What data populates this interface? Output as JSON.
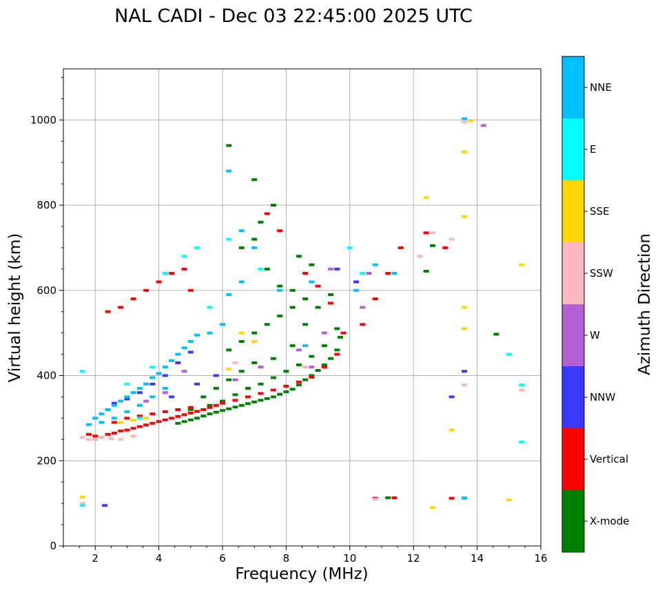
{
  "chart_data": {
    "type": "scatter",
    "title": "NAL CADI - Dec 03 22:45:00 2025 UTC",
    "xlabel": "Frequency (MHz)",
    "ylabel": "Virtual height (km)",
    "xlim": [
      1,
      16
    ],
    "ylim": [
      0,
      1120
    ],
    "xticks": [
      2,
      4,
      6,
      8,
      10,
      12,
      14,
      16
    ],
    "yticks": [
      0,
      200,
      400,
      600,
      800,
      1000
    ],
    "grid": true,
    "colorbar": {
      "label": "Azimuth Direction",
      "placement": "right",
      "categories": [
        {
          "name": "X-mode",
          "color": "#008000"
        },
        {
          "name": "Vertical",
          "color": "#ff0000"
        },
        {
          "name": "NNW",
          "color": "#3a3aff"
        },
        {
          "name": "W",
          "color": "#b55fd6"
        },
        {
          "name": "SSW",
          "color": "#ffb6c1"
        },
        {
          "name": "SSE",
          "color": "#ffd700"
        },
        {
          "name": "E",
          "color": "#00ffff"
        },
        {
          "name": "NNE",
          "color": "#00bfff"
        }
      ]
    },
    "series": [
      {
        "name": "X-mode",
        "color": "#008000",
        "points": [
          [
            4.6,
            288
          ],
          [
            4.8,
            292
          ],
          [
            5.0,
            296
          ],
          [
            5.2,
            300
          ],
          [
            5.4,
            305
          ],
          [
            5.6,
            310
          ],
          [
            5.8,
            314
          ],
          [
            6.0,
            318
          ],
          [
            6.2,
            322
          ],
          [
            6.4,
            326
          ],
          [
            6.6,
            330
          ],
          [
            6.8,
            334
          ],
          [
            7.0,
            338
          ],
          [
            7.2,
            342
          ],
          [
            7.4,
            346
          ],
          [
            7.6,
            350
          ],
          [
            7.8,
            356
          ],
          [
            8.0,
            362
          ],
          [
            8.2,
            368
          ],
          [
            8.4,
            378
          ],
          [
            8.6,
            390
          ],
          [
            8.8,
            400
          ],
          [
            9.0,
            412
          ],
          [
            9.2,
            425
          ],
          [
            9.4,
            440
          ],
          [
            9.6,
            460
          ],
          [
            9.7,
            490
          ],
          [
            5.6,
            330
          ],
          [
            6.0,
            340
          ],
          [
            6.4,
            355
          ],
          [
            6.8,
            370
          ],
          [
            7.2,
            380
          ],
          [
            7.6,
            395
          ],
          [
            8.0,
            410
          ],
          [
            8.4,
            425
          ],
          [
            8.8,
            445
          ],
          [
            9.2,
            470
          ],
          [
            9.6,
            510
          ],
          [
            6.2,
            460
          ],
          [
            6.6,
            480
          ],
          [
            7.0,
            500
          ],
          [
            7.4,
            520
          ],
          [
            7.8,
            540
          ],
          [
            8.2,
            560
          ],
          [
            8.6,
            580
          ],
          [
            9.0,
            560
          ],
          [
            9.4,
            590
          ],
          [
            6.6,
            700
          ],
          [
            7.0,
            720
          ],
          [
            7.4,
            650
          ],
          [
            7.8,
            610
          ],
          [
            8.2,
            600
          ],
          [
            8.4,
            680
          ],
          [
            8.8,
            660
          ],
          [
            7.2,
            760
          ],
          [
            7.6,
            800
          ],
          [
            7.0,
            860
          ],
          [
            6.2,
            940
          ],
          [
            8.6,
            520
          ],
          [
            8.2,
            470
          ],
          [
            7.6,
            440
          ],
          [
            7.0,
            430
          ],
          [
            6.6,
            410
          ],
          [
            6.2,
            390
          ],
          [
            5.8,
            370
          ],
          [
            5.4,
            350
          ],
          [
            5.0,
            320
          ],
          [
            14.6,
            497
          ],
          [
            12.6,
            705
          ],
          [
            12.4,
            645
          ],
          [
            11.2,
            113
          ]
        ]
      },
      {
        "name": "Vertical",
        "color": "#ff0000",
        "points": [
          [
            1.8,
            262
          ],
          [
            2.0,
            258
          ],
          [
            2.2,
            255
          ],
          [
            2.4,
            262
          ],
          [
            2.6,
            265
          ],
          [
            2.8,
            270
          ],
          [
            3.0,
            272
          ],
          [
            3.2,
            276
          ],
          [
            3.4,
            280
          ],
          [
            3.6,
            284
          ],
          [
            3.8,
            288
          ],
          [
            4.0,
            292
          ],
          [
            4.2,
            296
          ],
          [
            4.4,
            300
          ],
          [
            4.6,
            304
          ],
          [
            4.8,
            308
          ],
          [
            5.0,
            312
          ],
          [
            5.2,
            316
          ],
          [
            5.4,
            320
          ],
          [
            5.6,
            325
          ],
          [
            5.8,
            330
          ],
          [
            6.0,
            335
          ],
          [
            6.4,
            342
          ],
          [
            6.8,
            350
          ],
          [
            7.2,
            358
          ],
          [
            7.6,
            366
          ],
          [
            8.0,
            375
          ],
          [
            8.4,
            385
          ],
          [
            8.8,
            396
          ],
          [
            9.2,
            420
          ],
          [
            9.6,
            450
          ],
          [
            9.8,
            500
          ],
          [
            2.6,
            290
          ],
          [
            3.0,
            300
          ],
          [
            3.4,
            305
          ],
          [
            3.8,
            310
          ],
          [
            4.2,
            315
          ],
          [
            4.6,
            320
          ],
          [
            5.0,
            325
          ],
          [
            2.4,
            550
          ],
          [
            2.8,
            560
          ],
          [
            3.2,
            580
          ],
          [
            3.6,
            600
          ],
          [
            4.0,
            620
          ],
          [
            4.4,
            640
          ],
          [
            4.8,
            650
          ],
          [
            5.0,
            600
          ],
          [
            7.4,
            780
          ],
          [
            7.8,
            740
          ],
          [
            8.6,
            640
          ],
          [
            9.0,
            610
          ],
          [
            9.4,
            570
          ],
          [
            10.4,
            520
          ],
          [
            10.8,
            580
          ],
          [
            11.2,
            640
          ],
          [
            11.6,
            700
          ],
          [
            12.4,
            735
          ],
          [
            13.0,
            700
          ],
          [
            10.8,
            112
          ],
          [
            11.4,
            113
          ],
          [
            13.2,
            112
          ]
        ]
      },
      {
        "name": "NNW",
        "color": "#3a3aff",
        "points": [
          [
            2.6,
            335
          ],
          [
            3.0,
            345
          ],
          [
            3.4,
            360
          ],
          [
            3.8,
            380
          ],
          [
            4.2,
            400
          ],
          [
            4.6,
            430
          ],
          [
            5.0,
            455
          ],
          [
            4.4,
            350
          ],
          [
            5.2,
            380
          ],
          [
            5.8,
            400
          ],
          [
            9.6,
            650
          ],
          [
            10.2,
            620
          ],
          [
            13.6,
            410
          ],
          [
            13.2,
            350
          ],
          [
            2.3,
            95
          ]
        ]
      },
      {
        "name": "W",
        "color": "#b55fd6",
        "points": [
          [
            3.6,
            340
          ],
          [
            4.2,
            360
          ],
          [
            4.8,
            410
          ],
          [
            6.4,
            390
          ],
          [
            7.2,
            420
          ],
          [
            8.4,
            460
          ],
          [
            8.8,
            420
          ],
          [
            9.2,
            500
          ],
          [
            9.4,
            650
          ],
          [
            10.4,
            560
          ],
          [
            10.6,
            640
          ],
          [
            14.2,
            987
          ]
        ]
      },
      {
        "name": "SSW",
        "color": "#ffb6c1",
        "points": [
          [
            1.6,
            255
          ],
          [
            1.8,
            250
          ],
          [
            2.0,
            250
          ],
          [
            2.2,
            255
          ],
          [
            2.5,
            252
          ],
          [
            2.8,
            250
          ],
          [
            3.2,
            258
          ],
          [
            6.4,
            430
          ],
          [
            8.6,
            420
          ],
          [
            10.8,
            110
          ],
          [
            12.2,
            680
          ],
          [
            12.6,
            735
          ],
          [
            13.2,
            720
          ],
          [
            13.6,
            378
          ],
          [
            15.4,
            366
          ],
          [
            13.6,
            995
          ],
          [
            1.6,
            100
          ]
        ]
      },
      {
        "name": "SSE",
        "color": "#ffd700",
        "points": [
          [
            2.8,
            290
          ],
          [
            3.2,
            295
          ],
          [
            3.6,
            300
          ],
          [
            6.2,
            415
          ],
          [
            6.6,
            500
          ],
          [
            7.0,
            480
          ],
          [
            12.4,
            818
          ],
          [
            12.6,
            90
          ],
          [
            13.2,
            272
          ],
          [
            13.6,
            560
          ],
          [
            13.6,
            510
          ],
          [
            13.6,
            773
          ],
          [
            13.6,
            925
          ],
          [
            15.0,
            108
          ],
          [
            15.4,
            660
          ],
          [
            1.6,
            115
          ],
          [
            13.8,
            998
          ]
        ]
      },
      {
        "name": "E",
        "color": "#00ffff",
        "points": [
          [
            1.6,
            410
          ],
          [
            2.0,
            300
          ],
          [
            2.4,
            320
          ],
          [
            3.0,
            380
          ],
          [
            3.4,
            300
          ],
          [
            3.8,
            420
          ],
          [
            4.2,
            640
          ],
          [
            4.8,
            680
          ],
          [
            5.2,
            700
          ],
          [
            5.6,
            560
          ],
          [
            6.2,
            720
          ],
          [
            7.2,
            650
          ],
          [
            10.0,
            700
          ],
          [
            10.4,
            640
          ],
          [
            13.6,
            113
          ],
          [
            15.0,
            450
          ],
          [
            15.4,
            378
          ],
          [
            15.4,
            244
          ],
          [
            1.6,
            95
          ]
        ]
      },
      {
        "name": "NNE",
        "color": "#00bfff",
        "points": [
          [
            1.8,
            285
          ],
          [
            2.0,
            300
          ],
          [
            2.2,
            310
          ],
          [
            2.4,
            320
          ],
          [
            2.6,
            330
          ],
          [
            2.8,
            340
          ],
          [
            3.0,
            350
          ],
          [
            3.2,
            360
          ],
          [
            3.4,
            370
          ],
          [
            3.6,
            380
          ],
          [
            3.8,
            395
          ],
          [
            4.0,
            405
          ],
          [
            4.2,
            420
          ],
          [
            4.4,
            435
          ],
          [
            4.6,
            450
          ],
          [
            4.8,
            465
          ],
          [
            5.0,
            480
          ],
          [
            5.2,
            495
          ],
          [
            2.2,
            290
          ],
          [
            2.6,
            300
          ],
          [
            3.0,
            315
          ],
          [
            3.4,
            330
          ],
          [
            3.8,
            350
          ],
          [
            4.2,
            370
          ],
          [
            5.6,
            500
          ],
          [
            6.0,
            520
          ],
          [
            6.2,
            590
          ],
          [
            6.6,
            620
          ],
          [
            6.2,
            880
          ],
          [
            6.6,
            740
          ],
          [
            7.0,
            700
          ],
          [
            7.8,
            600
          ],
          [
            8.6,
            470
          ],
          [
            8.8,
            620
          ],
          [
            10.2,
            600
          ],
          [
            10.8,
            660
          ],
          [
            11.4,
            640
          ],
          [
            13.6,
            112
          ],
          [
            13.6,
            1003
          ]
        ]
      }
    ]
  }
}
